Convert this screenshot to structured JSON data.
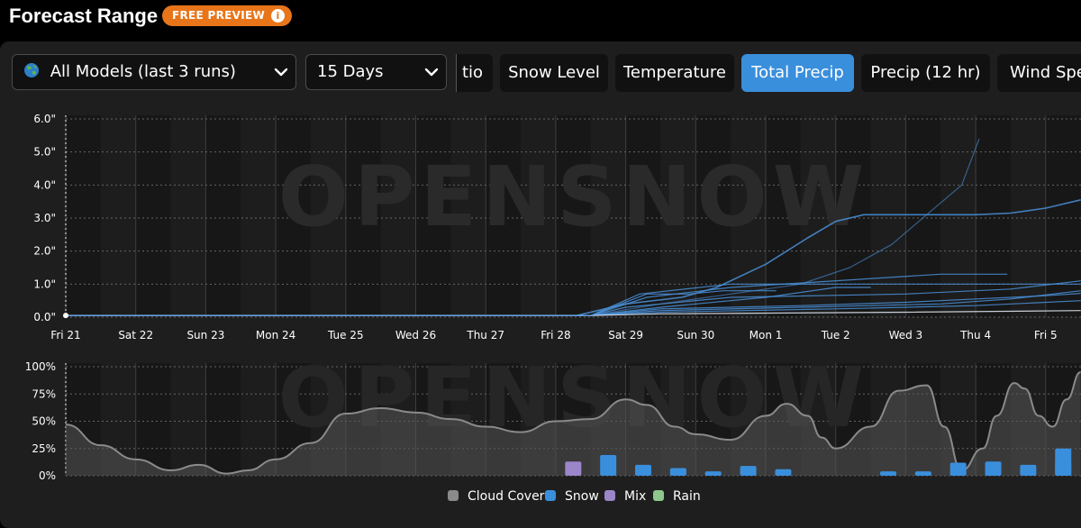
{
  "header": {
    "title": "Forecast Range",
    "badge": "FREE PREVIEW",
    "badge_color": "#e8751a"
  },
  "controls": {
    "model_select": {
      "icon": "globe-icon",
      "value": "All Models (last 3 runs)"
    },
    "range_select": {
      "value": "15 Days"
    },
    "tabs": [
      {
        "label": "tio",
        "active": false
      },
      {
        "label": "Snow Level",
        "active": false
      },
      {
        "label": "Temperature",
        "active": false
      },
      {
        "label": "Total Precip",
        "active": true
      },
      {
        "label": "Precip (12 hr)",
        "active": false
      },
      {
        "label": "Wind Spe",
        "active": false
      }
    ],
    "accent_color": "#3a8fdc"
  },
  "watermark": "OPENSNOW",
  "chart_data": [
    {
      "type": "line",
      "title": "",
      "ylabel": "",
      "ylim": [
        0,
        6
      ],
      "y_ticks": [
        "0.0\"",
        "1.0\"",
        "2.0\"",
        "3.0\"",
        "4.0\"",
        "5.0\"",
        "6.0\""
      ],
      "x_labels": [
        "Fri 21",
        "Sat 22",
        "Sun 23",
        "Mon 24",
        "Tue 25",
        "Wed 26",
        "Thu 27",
        "Fri 28",
        "Sat 29",
        "Sun 30",
        "Mon 1",
        "Tue 2",
        "Wed 3",
        "Thu 4",
        "Fri 5"
      ],
      "x_range": [
        0,
        14.5
      ],
      "grid": true,
      "line_color": "#4a90d9",
      "series": [
        {
          "x": [
            0,
            7.3,
            8.0,
            8.8,
            9.3,
            10.0,
            10.6,
            11.0,
            11.4,
            12.0,
            12.5,
            13.0,
            13.5,
            14.0,
            14.5
          ],
          "y": [
            0.05,
            0.05,
            0.4,
            0.6,
            0.9,
            1.6,
            2.4,
            2.9,
            3.1,
            3.1,
            3.1,
            3.1,
            3.15,
            3.3,
            3.55
          ]
        },
        {
          "x": [
            0,
            7.5,
            8.5,
            9.5,
            10.5,
            11.2,
            11.8,
            12.3,
            12.8,
            13.05
          ],
          "y": [
            0.05,
            0.05,
            0.4,
            0.7,
            1.0,
            1.5,
            2.2,
            3.1,
            4.0,
            5.4
          ]
        },
        {
          "x": [
            0,
            7.5,
            8.3,
            9.5,
            12.5,
            13.45
          ],
          "y": [
            0.05,
            0.05,
            0.6,
            0.9,
            1.3,
            1.3
          ]
        },
        {
          "x": [
            0,
            7.5,
            8.2,
            9.5,
            14.5
          ],
          "y": [
            0.05,
            0.05,
            0.7,
            1.0,
            1.0
          ]
        },
        {
          "x": [
            0,
            7.5,
            8.3,
            8.9,
            9.4,
            10.15
          ],
          "y": [
            0.05,
            0.05,
            0.7,
            0.7,
            0.8,
            0.8
          ]
        },
        {
          "x": [
            0,
            7.5,
            8.5,
            10.0,
            11.0,
            11.5
          ],
          "y": [
            0.05,
            0.05,
            0.3,
            0.6,
            0.9,
            0.9
          ]
        },
        {
          "x": [
            0,
            7.5,
            8.5,
            10.5,
            12.0,
            13.0,
            14.0,
            14.5
          ],
          "y": [
            0.05,
            0.05,
            0.25,
            0.35,
            0.45,
            0.55,
            0.65,
            0.72
          ]
        },
        {
          "x": [
            0,
            7.5,
            8.5,
            10.5,
            12.5,
            13.5,
            14.5
          ],
          "y": [
            0.05,
            0.05,
            0.2,
            0.3,
            0.4,
            0.55,
            0.8
          ]
        },
        {
          "x": [
            0,
            7.5,
            8.5,
            11.0,
            13.0,
            14.5
          ],
          "y": [
            0.05,
            0.05,
            0.15,
            0.25,
            0.35,
            0.5
          ]
        },
        {
          "x": [
            0,
            7.5,
            8.5,
            12.0,
            14.5
          ],
          "y": [
            0.05,
            0.05,
            0.1,
            0.15,
            0.2
          ]
        },
        {
          "x": [
            0,
            7.5,
            8.0,
            9.5,
            12.0,
            13.5,
            14.5
          ],
          "y": [
            0.05,
            0.05,
            0.3,
            0.6,
            0.7,
            0.85,
            1.1
          ]
        }
      ]
    },
    {
      "type": "bar",
      "ylim": [
        0,
        100
      ],
      "y_ticks": [
        "0%",
        "25%",
        "50%",
        "75%",
        "100%"
      ],
      "x_range": [
        0,
        14.5
      ],
      "grid": true,
      "cloud_cover": {
        "name": "Cloud Cover",
        "color": "#8a8a8a",
        "x": [
          0,
          0.5,
          1.0,
          1.5,
          1.9,
          2.3,
          2.6,
          3.0,
          3.5,
          4.0,
          4.5,
          5.0,
          5.5,
          6.0,
          6.5,
          7.0,
          7.5,
          8.0,
          8.3,
          8.7,
          9.0,
          9.5,
          10.0,
          10.3,
          10.6,
          10.8,
          11.0,
          11.5,
          11.9,
          12.3,
          12.55,
          12.8,
          13.1,
          13.3,
          13.55,
          13.7,
          13.9,
          14.1,
          14.3,
          14.5
        ],
        "values": [
          47,
          28,
          15,
          5,
          10,
          2,
          5,
          15,
          30,
          57,
          62,
          58,
          52,
          45,
          40,
          50,
          52,
          70,
          65,
          45,
          38,
          33,
          55,
          66,
          55,
          35,
          25,
          45,
          78,
          83,
          45,
          5,
          25,
          55,
          85,
          80,
          55,
          45,
          70,
          95
        ]
      },
      "snow": {
        "name": "Snow",
        "color": "#3a8fdc",
        "x": [
          7.75,
          8.25,
          8.75,
          9.25,
          9.75,
          10.25,
          10.75,
          11.75,
          12.25,
          12.75,
          13.25,
          13.75,
          14.25
        ],
        "values": [
          19,
          10,
          7,
          4,
          9,
          6,
          0,
          4,
          4,
          12,
          13,
          10,
          13
        ]
      },
      "snow_extra": {
        "x": [
          14.25
        ],
        "values": [
          25
        ]
      },
      "mix": {
        "name": "Mix",
        "color": "#9a86c8",
        "x": [
          7.25
        ],
        "values": [
          13
        ]
      },
      "rain": {
        "name": "Rain",
        "color": "#8cc88c",
        "x": [],
        "values": []
      },
      "legend": [
        "Cloud Cover",
        "Snow",
        "Mix",
        "Rain"
      ]
    }
  ]
}
